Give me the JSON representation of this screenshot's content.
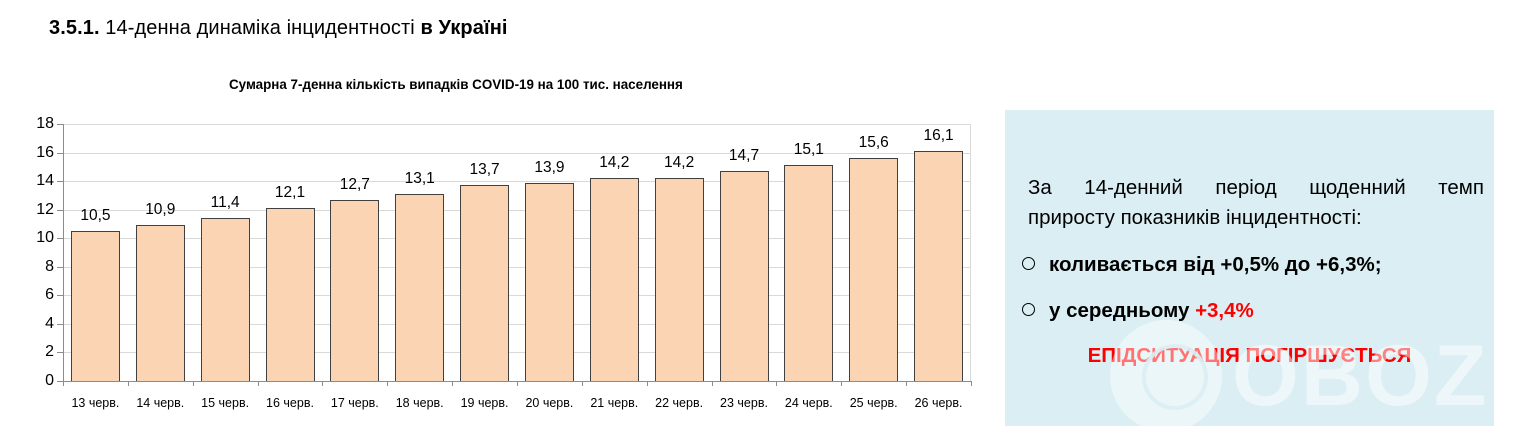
{
  "heading": {
    "number": "3.5.1.",
    "text": " 14-денна динаміка інцидентності ",
    "bold_tail": "в Україні"
  },
  "chart_data": {
    "type": "bar",
    "title": "Сумарна 7-денна кількість випадків COVID-19 на 100 тис. населення",
    "xlabel": "",
    "ylabel": "",
    "categories": [
      "13 черв.",
      "14 черв.",
      "15 черв.",
      "16 черв.",
      "17 черв.",
      "18 черв.",
      "19 черв.",
      "20 черв.",
      "21 черв.",
      "22 черв.",
      "23 черв.",
      "24 черв.",
      "25 черв.",
      "26 черв."
    ],
    "values": [
      10.5,
      10.9,
      11.4,
      12.1,
      12.7,
      13.1,
      13.7,
      13.9,
      14.2,
      14.2,
      14.7,
      15.1,
      15.6,
      16.1
    ],
    "value_labels": [
      "10,5",
      "10,9",
      "11,4",
      "12,1",
      "12,7",
      "13,1",
      "13,7",
      "13,9",
      "14,2",
      "14,2",
      "14,7",
      "15,1",
      "15,6",
      "16,1"
    ],
    "ylim": [
      0,
      18
    ],
    "yticks": [
      "0",
      "2",
      "4",
      "6",
      "8",
      "10",
      "12",
      "14",
      "16",
      "18"
    ],
    "grid": true,
    "legend": null,
    "bar_color": "#fbd4b4",
    "bar_edge_color": "#404040"
  },
  "panel": {
    "intro_line1": "За 14-денний період щоденний темп",
    "intro_line2": "приросту показників інцидентності:",
    "bullet1": "коливається від +0,5% до +6,3%;",
    "bullet2_text": "у середньому ",
    "bullet2_value": "+3,4%",
    "alert": "ЕПІДСИТУАЦІЯ ПОГІРШУЄТЬСЯ",
    "background": "#daeef3",
    "accent": "#ff0000"
  },
  "watermark": {
    "text": "OBOZ.UA",
    "icon": "globe-icon"
  }
}
